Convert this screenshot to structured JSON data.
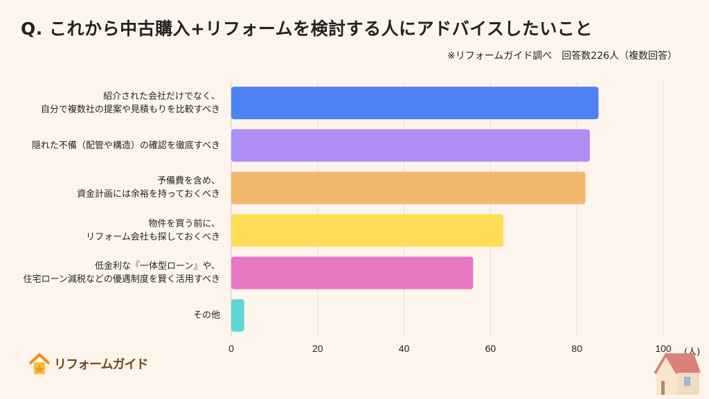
{
  "title": "Q. これから中古購入+リフォームを検討する人にアドバイスしたいこと",
  "note": "※リフォームガイド調べ　回答数226人（複数回答）",
  "logo": "リフォームガイド",
  "chart_data": {
    "type": "bar",
    "orientation": "horizontal",
    "categories": [
      "紹介された会社だけでなく、\n自分で複数社の提案や見積もりを比較すべき",
      "隠れた不備（配管や構造）の確認を徹底すべき",
      "予備費を含め、\n資金計画には余裕を持っておくべき",
      "物件を買う前に、\nリフォーム会社も探しておくべき",
      "低金利な『一体型ローン』や、\n住宅ローン減税などの優遇制度を賢く活用すべき",
      "その他"
    ],
    "values": [
      85,
      83,
      82,
      63,
      56,
      3
    ],
    "colors": [
      "#4d82f5",
      "#ad8ef4",
      "#f2b86e",
      "#ffdd57",
      "#e878c3",
      "#5dd6d4"
    ],
    "xlim": [
      0,
      100
    ],
    "xticks": [
      "0",
      "20",
      "40",
      "60",
      "80",
      "100"
    ],
    "xunit": "(人)",
    "grid": true
  }
}
